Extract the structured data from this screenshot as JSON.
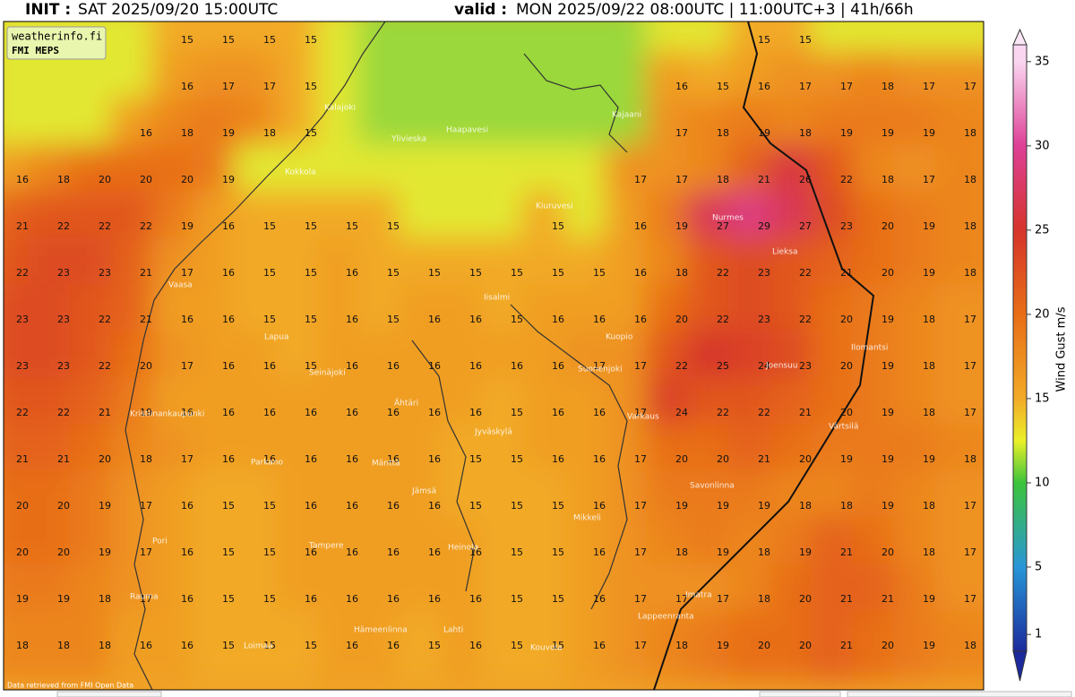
{
  "header": {
    "init_label": "INIT :",
    "init_time": "SAT 2025/09/20 15:00UTC",
    "valid_label": "valid :",
    "valid_time": "MON 2025/09/22 08:00UTC | 11:00UTC+3 | 41h/66h"
  },
  "logo": {
    "site": "weatherinfo.fi",
    "model": "FMI MEPS"
  },
  "map": {
    "credit": "Data retrieved from FMI Open Data",
    "gust_grid": [
      [
        null,
        null,
        null,
        null,
        15,
        15,
        15,
        15,
        null,
        null,
        null,
        null,
        null,
        null,
        null,
        null,
        null,
        null,
        15,
        15,
        null,
        null,
        null,
        null
      ],
      [
        null,
        null,
        null,
        null,
        16,
        17,
        17,
        15,
        null,
        null,
        null,
        null,
        null,
        null,
        null,
        null,
        16,
        15,
        16,
        17,
        17,
        18,
        17,
        17
      ],
      [
        null,
        null,
        null,
        16,
        18,
        19,
        18,
        15,
        null,
        null,
        null,
        null,
        null,
        null,
        null,
        null,
        17,
        18,
        19,
        18,
        19,
        19,
        19,
        18
      ],
      [
        16,
        18,
        20,
        20,
        20,
        19,
        null,
        null,
        null,
        null,
        null,
        null,
        null,
        null,
        null,
        17,
        17,
        18,
        21,
        26,
        22,
        18,
        17,
        18
      ],
      [
        21,
        22,
        22,
        22,
        19,
        16,
        15,
        15,
        15,
        15,
        null,
        null,
        null,
        15,
        null,
        16,
        19,
        27,
        29,
        27,
        23,
        20,
        19,
        18
      ],
      [
        22,
        23,
        23,
        21,
        17,
        16,
        15,
        15,
        16,
        15,
        15,
        15,
        15,
        15,
        15,
        16,
        18,
        22,
        23,
        22,
        21,
        20,
        19,
        18
      ],
      [
        23,
        23,
        22,
        21,
        16,
        16,
        15,
        15,
        16,
        15,
        16,
        16,
        15,
        16,
        16,
        16,
        20,
        22,
        23,
        22,
        20,
        19,
        18,
        17
      ],
      [
        23,
        23,
        22,
        20,
        17,
        16,
        16,
        15,
        16,
        16,
        16,
        16,
        16,
        16,
        17,
        17,
        22,
        25,
        24,
        23,
        20,
        19,
        18,
        17
      ],
      [
        22,
        22,
        21,
        19,
        16,
        16,
        16,
        16,
        16,
        16,
        16,
        16,
        15,
        16,
        16,
        17,
        24,
        22,
        22,
        21,
        20,
        19,
        18,
        17
      ],
      [
        21,
        21,
        20,
        18,
        17,
        16,
        16,
        16,
        16,
        16,
        16,
        15,
        15,
        16,
        16,
        17,
        20,
        20,
        21,
        20,
        19,
        19,
        19,
        18
      ],
      [
        20,
        20,
        19,
        17,
        16,
        15,
        15,
        16,
        16,
        16,
        16,
        15,
        15,
        15,
        16,
        17,
        19,
        19,
        19,
        18,
        18,
        19,
        18,
        17
      ],
      [
        20,
        20,
        19,
        17,
        16,
        15,
        15,
        16,
        16,
        16,
        16,
        16,
        15,
        15,
        16,
        17,
        18,
        19,
        18,
        19,
        21,
        20,
        18,
        17
      ],
      [
        19,
        19,
        18,
        17,
        16,
        15,
        15,
        16,
        16,
        16,
        16,
        16,
        15,
        15,
        16,
        17,
        17,
        17,
        18,
        20,
        21,
        21,
        19,
        17
      ],
      [
        18,
        18,
        18,
        16,
        16,
        15,
        15,
        15,
        16,
        16,
        15,
        16,
        15,
        15,
        16,
        17,
        18,
        19,
        20,
        20,
        21,
        20,
        19,
        18
      ]
    ],
    "cities": [
      "Kalajoki",
      "Ylivieska",
      "Haapavesi",
      "Kajaani",
      "Kokkola",
      "Kiuruvesi",
      "Nurmes",
      "Lieksa",
      "Vaasa",
      "Iisalmi",
      "Kuopio",
      "Lapua",
      "Ilomantsi",
      "Joensuu",
      "Seinäjoki",
      "Suonenjoki",
      "Ähtäri",
      "Kristiinankaupunki",
      "Varkaus",
      "Jyväskylä",
      "Värtsilä",
      "Parkano",
      "Mänttä",
      "Savonlinna",
      "Jämsä",
      "Mikkeli",
      "Pori",
      "Tampere",
      "Heinola",
      "Rauma",
      "Imatra",
      "Lappeenranta",
      "Hämeenlinna",
      "Lahti",
      "Kouvola",
      "Loimaa"
    ]
  },
  "colorbar": {
    "label": "Wind Gust m/s",
    "lim": [
      0,
      36
    ],
    "ticks": [
      1,
      5,
      10,
      15,
      20,
      25,
      30,
      35
    ]
  }
}
